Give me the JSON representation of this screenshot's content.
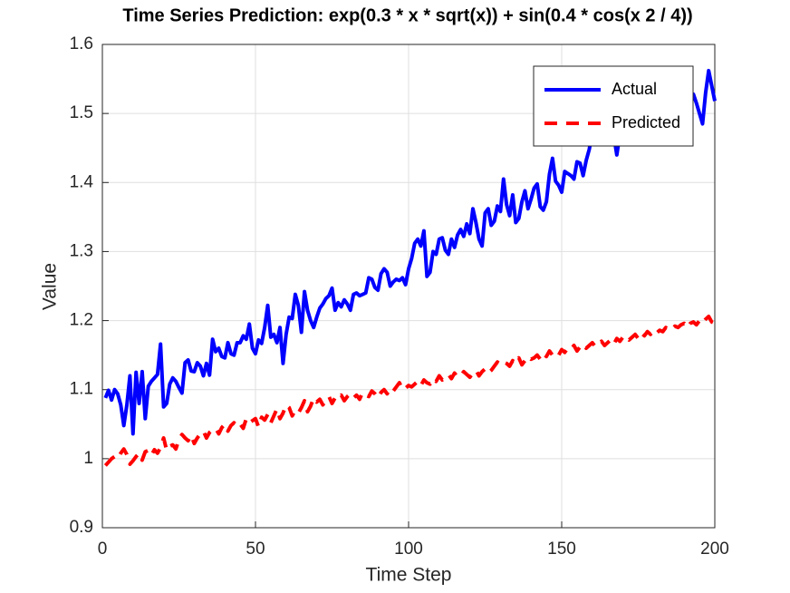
{
  "chart_data": {
    "type": "line",
    "title": "Time Series Prediction: exp(0.3 * x * sqrt(x)) + sin(0.4 * cos(x  2 / 4))",
    "x_label": "Time Step",
    "y_label": "Value",
    "x": [
      1,
      2,
      3,
      4,
      5,
      6,
      7,
      8,
      9,
      10,
      11,
      12,
      13,
      14,
      15,
      16,
      17,
      18,
      19,
      20,
      21,
      22,
      23,
      24,
      25,
      26,
      27,
      28,
      29,
      30,
      31,
      32,
      33,
      34,
      35,
      36,
      37,
      38,
      39,
      40,
      41,
      42,
      43,
      44,
      45,
      46,
      47,
      48,
      49,
      50,
      51,
      52,
      53,
      54,
      55,
      56,
      57,
      58,
      59,
      60,
      61,
      62,
      63,
      64,
      65,
      66,
      67,
      68,
      69,
      70,
      71,
      72,
      73,
      74,
      75,
      76,
      77,
      78,
      79,
      80,
      81,
      82,
      83,
      84,
      85,
      86,
      87,
      88,
      89,
      90,
      91,
      92,
      93,
      94,
      95,
      96,
      97,
      98,
      99,
      100,
      101,
      102,
      103,
      104,
      105,
      106,
      107,
      108,
      109,
      110,
      111,
      112,
      113,
      114,
      115,
      116,
      117,
      118,
      119,
      120,
      121,
      122,
      123,
      124,
      125,
      126,
      127,
      128,
      129,
      130,
      131,
      132,
      133,
      134,
      135,
      136,
      137,
      138,
      139,
      140,
      141,
      142,
      143,
      144,
      145,
      146,
      147,
      148,
      149,
      150,
      151,
      152,
      153,
      154,
      155,
      156,
      157,
      158,
      159,
      160,
      161,
      162,
      163,
      164,
      165,
      166,
      167,
      168,
      169,
      170,
      171,
      172,
      173,
      174,
      175,
      176,
      177,
      178,
      179,
      180,
      181,
      182,
      183,
      184,
      185,
      186,
      187,
      188,
      189,
      190,
      191,
      192,
      193,
      194,
      195,
      196,
      197,
      198,
      199,
      200
    ],
    "series": [
      {
        "name": "Actual",
        "color": "#0000ff",
        "linestyle": "solid",
        "values": [
          1.088,
          1.099,
          1.085,
          1.1,
          1.094,
          1.078,
          1.048,
          1.078,
          1.12,
          1.036,
          1.125,
          1.08,
          1.126,
          1.058,
          1.105,
          1.112,
          1.117,
          1.122,
          1.166,
          1.075,
          1.08,
          1.108,
          1.117,
          1.112,
          1.103,
          1.095,
          1.139,
          1.143,
          1.127,
          1.126,
          1.139,
          1.134,
          1.12,
          1.138,
          1.121,
          1.173,
          1.155,
          1.16,
          1.148,
          1.146,
          1.168,
          1.152,
          1.15,
          1.168,
          1.168,
          1.178,
          1.173,
          1.195,
          1.16,
          1.152,
          1.172,
          1.167,
          1.19,
          1.222,
          1.176,
          1.18,
          1.168,
          1.19,
          1.138,
          1.18,
          1.205,
          1.203,
          1.238,
          1.222,
          1.183,
          1.242,
          1.215,
          1.2,
          1.19,
          1.205,
          1.218,
          1.224,
          1.232,
          1.236,
          1.247,
          1.215,
          1.226,
          1.22,
          1.23,
          1.224,
          1.215,
          1.238,
          1.24,
          1.236,
          1.238,
          1.24,
          1.262,
          1.26,
          1.248,
          1.244,
          1.268,
          1.275,
          1.27,
          1.25,
          1.256,
          1.26,
          1.258,
          1.262,
          1.252,
          1.275,
          1.29,
          1.312,
          1.318,
          1.308,
          1.33,
          1.264,
          1.27,
          1.3,
          1.296,
          1.318,
          1.32,
          1.302,
          1.296,
          1.318,
          1.306,
          1.324,
          1.332,
          1.322,
          1.34,
          1.326,
          1.362,
          1.342,
          1.318,
          1.308,
          1.356,
          1.362,
          1.338,
          1.344,
          1.366,
          1.358,
          1.405,
          1.368,
          1.352,
          1.382,
          1.342,
          1.348,
          1.372,
          1.388,
          1.362,
          1.376,
          1.392,
          1.398,
          1.365,
          1.36,
          1.372,
          1.412,
          1.435,
          1.402,
          1.396,
          1.386,
          1.416,
          1.413,
          1.41,
          1.405,
          1.43,
          1.428,
          1.41,
          1.432,
          1.448,
          1.472,
          1.462,
          1.48,
          1.466,
          1.475,
          1.455,
          1.484,
          1.468,
          1.44,
          1.47,
          1.478,
          1.47,
          1.486,
          1.476,
          1.492,
          1.498,
          1.478,
          1.488,
          1.496,
          1.502,
          1.49,
          1.505,
          1.498,
          1.51,
          1.492,
          1.508,
          1.5,
          1.505,
          1.512,
          1.498,
          1.51,
          1.522,
          1.51,
          1.528,
          1.515,
          1.5,
          1.485,
          1.53,
          1.562,
          1.54,
          1.518
        ]
      },
      {
        "name": "Predicted",
        "color": "#ff0000",
        "linestyle": "dashed",
        "values": [
          0.99,
          0.995,
          1.0,
          1.003,
          1.0,
          1.008,
          1.014,
          1.006,
          0.992,
          0.997,
          1.003,
          1.008,
          0.998,
          1.01,
          1.012,
          1.005,
          1.013,
          1.008,
          1.016,
          1.03,
          1.012,
          1.018,
          1.02,
          1.014,
          1.028,
          1.035,
          1.03,
          1.026,
          1.034,
          1.022,
          1.03,
          1.036,
          1.04,
          1.03,
          1.038,
          1.042,
          1.044,
          1.036,
          1.045,
          1.05,
          1.04,
          1.048,
          1.052,
          1.046,
          1.05,
          1.044,
          1.058,
          1.052,
          1.055,
          1.058,
          1.046,
          1.06,
          1.056,
          1.064,
          1.052,
          1.062,
          1.072,
          1.058,
          1.066,
          1.078,
          1.074,
          1.062,
          1.07,
          1.066,
          1.074,
          1.084,
          1.068,
          1.076,
          1.088,
          1.082,
          1.086,
          1.078,
          1.084,
          1.09,
          1.08,
          1.088,
          1.086,
          1.092,
          1.084,
          1.09,
          1.094,
          1.088,
          1.092,
          1.086,
          1.096,
          1.092,
          1.09,
          1.098,
          1.094,
          1.088,
          1.096,
          1.1,
          1.094,
          1.102,
          1.098,
          1.104,
          1.11,
          1.1,
          1.102,
          1.106,
          1.104,
          1.108,
          1.112,
          1.106,
          1.114,
          1.11,
          1.108,
          1.116,
          1.112,
          1.12,
          1.114,
          1.118,
          1.122,
          1.116,
          1.124,
          1.118,
          1.12,
          1.126,
          1.122,
          1.118,
          1.124,
          1.128,
          1.12,
          1.126,
          1.13,
          1.124,
          1.128,
          1.134,
          1.14,
          1.136,
          1.14,
          1.138,
          1.134,
          1.142,
          1.138,
          1.146,
          1.136,
          1.142,
          1.148,
          1.144,
          1.146,
          1.15,
          1.144,
          1.152,
          1.148,
          1.156,
          1.15,
          1.154,
          1.15,
          1.158,
          1.154,
          1.16,
          1.158,
          1.164,
          1.156,
          1.162,
          1.166,
          1.16,
          1.164,
          1.168,
          1.162,
          1.166,
          1.17,
          1.164,
          1.168,
          1.172,
          1.166,
          1.174,
          1.17,
          1.176,
          1.178,
          1.172,
          1.176,
          1.18,
          1.174,
          1.182,
          1.178,
          1.184,
          1.18,
          1.186,
          1.182,
          1.186,
          1.184,
          1.19,
          1.186,
          1.188,
          1.192,
          1.19,
          1.194,
          1.196,
          1.19,
          1.196,
          1.198,
          1.194,
          1.2,
          1.196,
          1.202,
          1.206,
          1.198,
          1.196
        ]
      }
    ],
    "xlim": [
      0,
      200
    ],
    "xticks": [
      0,
      50,
      100,
      150,
      200
    ],
    "ylim": [
      0.9,
      1.6
    ],
    "yticks": [
      0.9,
      1,
      1.1,
      1.2,
      1.3,
      1.4,
      1.5,
      1.6
    ],
    "grid": true,
    "legend": "northeast"
  }
}
